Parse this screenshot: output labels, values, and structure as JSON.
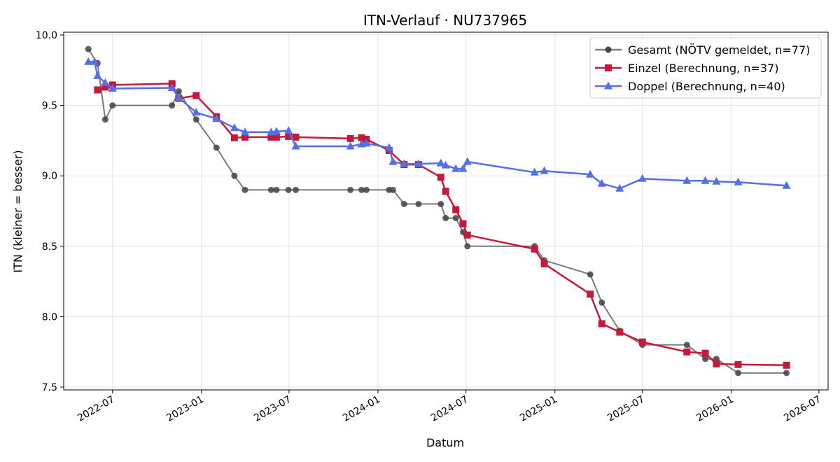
{
  "chart_data": {
    "type": "line",
    "title": "ITN-Verlauf · NU737965",
    "xlabel": "Datum",
    "ylabel": "ITN  (kleiner = besser)",
    "xlim": [
      "2022-03-22",
      "2026-07-20"
    ],
    "ylim": [
      7.48,
      10.02
    ],
    "x_ticks": [
      "2022-07-01",
      "2023-01-01",
      "2023-07-01",
      "2024-01-01",
      "2024-07-01",
      "2025-01-01",
      "2025-07-01",
      "2026-01-01",
      "2026-07-01"
    ],
    "x_tick_labels": [
      "2022-07",
      "2023-01",
      "2023-07",
      "2024-01",
      "2024-07",
      "2025-01",
      "2025-07",
      "2026-01",
      "2026-07"
    ],
    "y_ticks": [
      7.5,
      8.0,
      8.5,
      9.0,
      9.5,
      10.0
    ],
    "y_tick_labels": [
      "7.5",
      "8.0",
      "8.5",
      "9.0",
      "9.5",
      "10.0"
    ],
    "grid": true,
    "legend_position": "top-right",
    "series": [
      {
        "name": "Gesamt (NÖTV gemeldet, n=77)",
        "color": "#444444",
        "marker": "circle",
        "points": [
          [
            "2022-05-12",
            9.9
          ],
          [
            "2022-05-31",
            9.8
          ],
          [
            "2022-06-16",
            9.4
          ],
          [
            "2022-07-01",
            9.5
          ],
          [
            "2022-11-01",
            9.5
          ],
          [
            "2022-11-15",
            9.6
          ],
          [
            "2022-12-21",
            9.4
          ],
          [
            "2023-02-01",
            9.2
          ],
          [
            "2023-03-10",
            9.0
          ],
          [
            "2023-04-01",
            8.9
          ],
          [
            "2023-05-25",
            8.9
          ],
          [
            "2023-06-05",
            8.9
          ],
          [
            "2023-06-30",
            8.9
          ],
          [
            "2023-07-15",
            8.9
          ],
          [
            "2023-11-05",
            8.9
          ],
          [
            "2023-11-28",
            8.9
          ],
          [
            "2023-12-08",
            8.9
          ],
          [
            "2024-01-24",
            8.9
          ],
          [
            "2024-02-01",
            8.9
          ],
          [
            "2024-02-24",
            8.8
          ],
          [
            "2024-03-25",
            8.8
          ],
          [
            "2024-05-10",
            8.8
          ],
          [
            "2024-05-20",
            8.7
          ],
          [
            "2024-06-10",
            8.7
          ],
          [
            "2024-06-25",
            8.6
          ],
          [
            "2024-07-04",
            8.5
          ],
          [
            "2024-11-20",
            8.5
          ],
          [
            "2024-12-10",
            8.4
          ],
          [
            "2025-03-15",
            8.3
          ],
          [
            "2025-04-08",
            8.1
          ],
          [
            "2025-05-15",
            7.9
          ],
          [
            "2025-07-01",
            7.8
          ],
          [
            "2025-10-01",
            7.8
          ],
          [
            "2025-11-08",
            7.7
          ],
          [
            "2025-12-01",
            7.7
          ],
          [
            "2026-01-15",
            7.6
          ],
          [
            "2026-04-25",
            7.6
          ]
        ]
      },
      {
        "name": "Einzel (Berechnung, n=37)",
        "color": "#c41a3a",
        "marker": "square",
        "points": [
          [
            "2022-05-31",
            9.61
          ],
          [
            "2022-06-16",
            9.63
          ],
          [
            "2022-07-01",
            9.645
          ],
          [
            "2022-11-01",
            9.655
          ],
          [
            "2022-11-15",
            9.55
          ],
          [
            "2022-12-21",
            9.57
          ],
          [
            "2023-02-01",
            9.42
          ],
          [
            "2023-03-10",
            9.27
          ],
          [
            "2023-04-01",
            9.275
          ],
          [
            "2023-05-25",
            9.275
          ],
          [
            "2023-06-05",
            9.275
          ],
          [
            "2023-06-30",
            9.28
          ],
          [
            "2023-07-15",
            9.275
          ],
          [
            "2023-11-05",
            9.265
          ],
          [
            "2023-11-28",
            9.27
          ],
          [
            "2023-12-08",
            9.26
          ],
          [
            "2024-01-24",
            9.18
          ],
          [
            "2024-02-24",
            9.08
          ],
          [
            "2024-03-25",
            9.08
          ],
          [
            "2024-05-10",
            8.99
          ],
          [
            "2024-05-20",
            8.89
          ],
          [
            "2024-06-10",
            8.76
          ],
          [
            "2024-06-25",
            8.66
          ],
          [
            "2024-07-04",
            8.58
          ],
          [
            "2024-11-20",
            8.48
          ],
          [
            "2024-12-10",
            8.375
          ],
          [
            "2025-03-15",
            8.16
          ],
          [
            "2025-04-08",
            7.95
          ],
          [
            "2025-05-15",
            7.89
          ],
          [
            "2025-07-01",
            7.82
          ],
          [
            "2025-10-01",
            7.75
          ],
          [
            "2025-11-08",
            7.74
          ],
          [
            "2025-12-01",
            7.665
          ],
          [
            "2026-01-15",
            7.66
          ],
          [
            "2026-04-25",
            7.655
          ]
        ]
      },
      {
        "name": "Doppel (Berechnung, n=40)",
        "color": "#5470e6",
        "marker": "triangle",
        "points": [
          [
            "2022-05-12",
            9.81
          ],
          [
            "2022-05-25",
            9.81
          ],
          [
            "2022-05-31",
            9.71
          ],
          [
            "2022-06-16",
            9.66
          ],
          [
            "2022-07-01",
            9.62
          ],
          [
            "2022-11-01",
            9.625
          ],
          [
            "2022-11-15",
            9.555
          ],
          [
            "2022-12-21",
            9.45
          ],
          [
            "2023-02-01",
            9.405
          ],
          [
            "2023-03-10",
            9.34
          ],
          [
            "2023-04-01",
            9.31
          ],
          [
            "2023-05-25",
            9.31
          ],
          [
            "2023-06-05",
            9.315
          ],
          [
            "2023-06-30",
            9.32
          ],
          [
            "2023-07-15",
            9.21
          ],
          [
            "2023-11-05",
            9.21
          ],
          [
            "2023-11-28",
            9.225
          ],
          [
            "2023-12-08",
            9.23
          ],
          [
            "2024-01-24",
            9.2
          ],
          [
            "2024-02-01",
            9.1
          ],
          [
            "2024-02-24",
            9.085
          ],
          [
            "2024-03-25",
            9.085
          ],
          [
            "2024-05-10",
            9.09
          ],
          [
            "2024-05-20",
            9.075
          ],
          [
            "2024-06-10",
            9.05
          ],
          [
            "2024-06-25",
            9.05
          ],
          [
            "2024-07-04",
            9.1
          ],
          [
            "2024-11-20",
            9.025
          ],
          [
            "2024-12-10",
            9.035
          ],
          [
            "2025-03-15",
            9.01
          ],
          [
            "2025-04-08",
            8.945
          ],
          [
            "2025-05-15",
            8.91
          ],
          [
            "2025-07-01",
            8.98
          ],
          [
            "2025-10-01",
            8.965
          ],
          [
            "2025-11-08",
            8.965
          ],
          [
            "2025-12-01",
            8.96
          ],
          [
            "2026-01-15",
            8.955
          ],
          [
            "2026-04-25",
            8.93
          ]
        ]
      }
    ]
  }
}
